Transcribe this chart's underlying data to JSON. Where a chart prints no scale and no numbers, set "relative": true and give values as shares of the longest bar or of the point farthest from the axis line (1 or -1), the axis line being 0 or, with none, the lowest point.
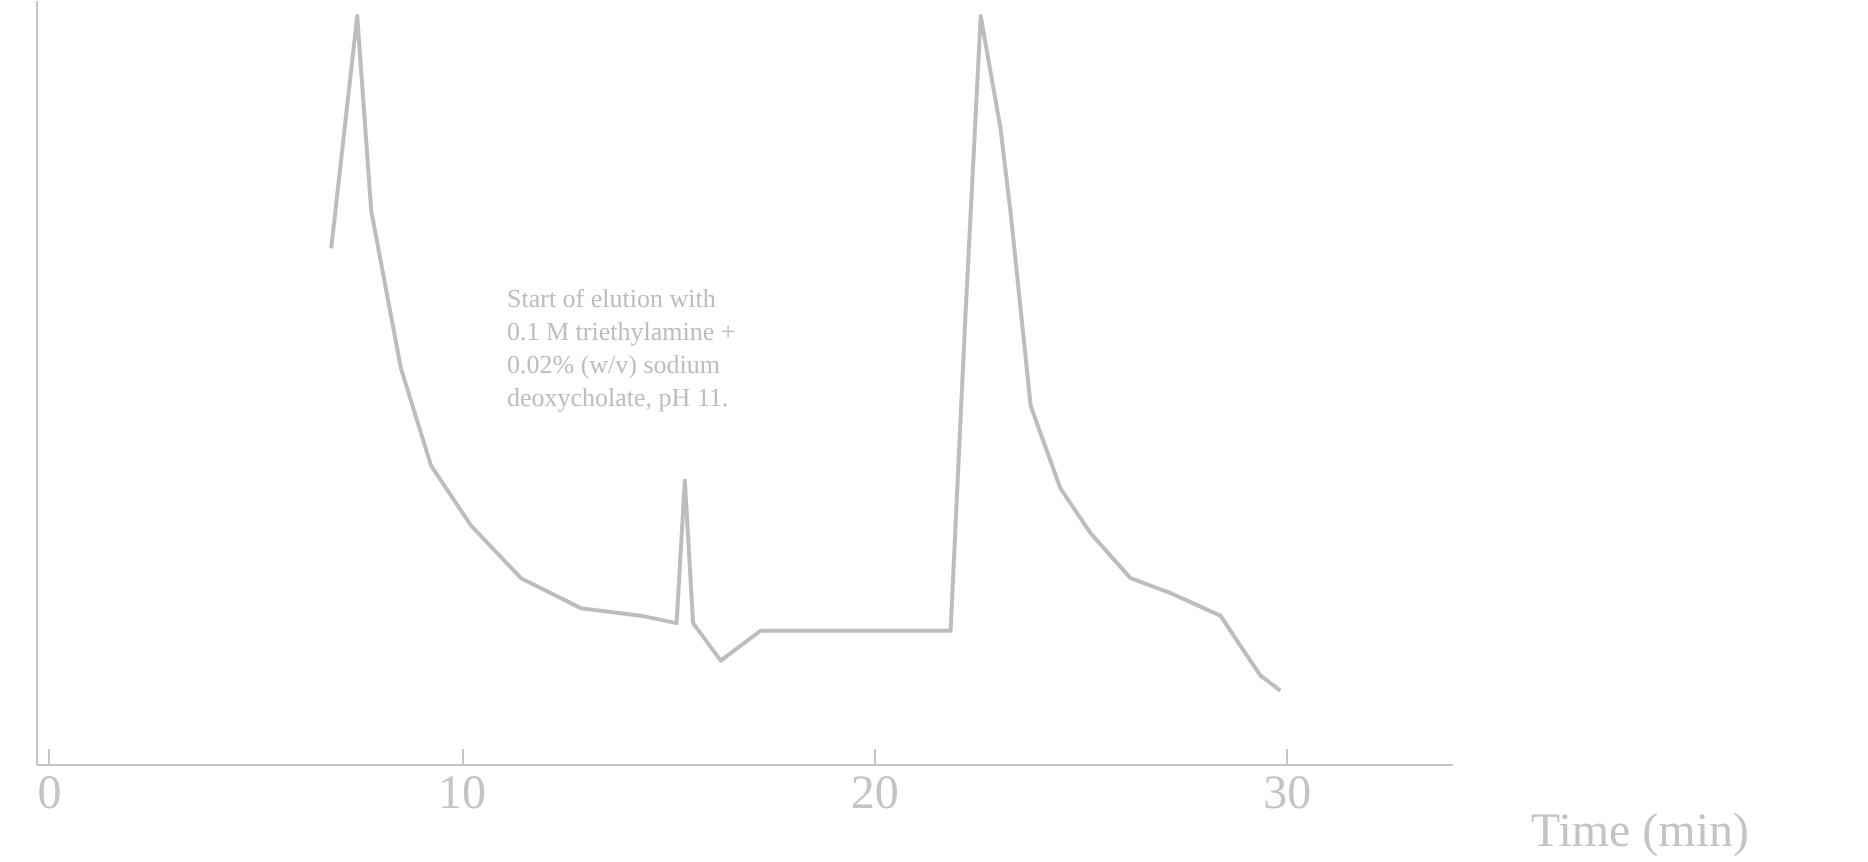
{
  "chart_data": {
    "type": "line",
    "relative": true,
    "xlabel": "Time (min)",
    "annotations": [
      "Start of elution with 0.1 M triethylamine + 0.02% (w/v) sodium deoxycholate, pH 11."
    ],
    "xlim": [
      -0.3,
      34
    ],
    "xticks": [
      0,
      10,
      20,
      30
    ],
    "grid": false,
    "tick_labels": "x",
    "series": [
      {
        "color": "#bdbdbd",
        "x": [
          6.83,
          7.46,
          7.8,
          8.52,
          9.25,
          10.22,
          11.43,
          12.88,
          14.33,
          15.2,
          15.4,
          15.6,
          16.27,
          17.24,
          19.18,
          21.84,
          22.2,
          22.57,
          23.05,
          23.29,
          23.78,
          24.5,
          25.23,
          26.2,
          27.17,
          28.38,
          28.86,
          29.35,
          29.83
        ],
        "values": [
          0.69,
          1.0,
          0.74,
          0.53,
          0.4,
          0.32,
          0.25,
          0.21,
          0.2,
          0.19,
          0.38,
          0.19,
          0.14,
          0.18,
          0.18,
          0.18,
          0.6,
          1.0,
          0.85,
          0.74,
          0.48,
          0.37,
          0.31,
          0.25,
          0.23,
          0.2,
          0.16,
          0.12,
          0.1
        ]
      }
    ]
  }
}
